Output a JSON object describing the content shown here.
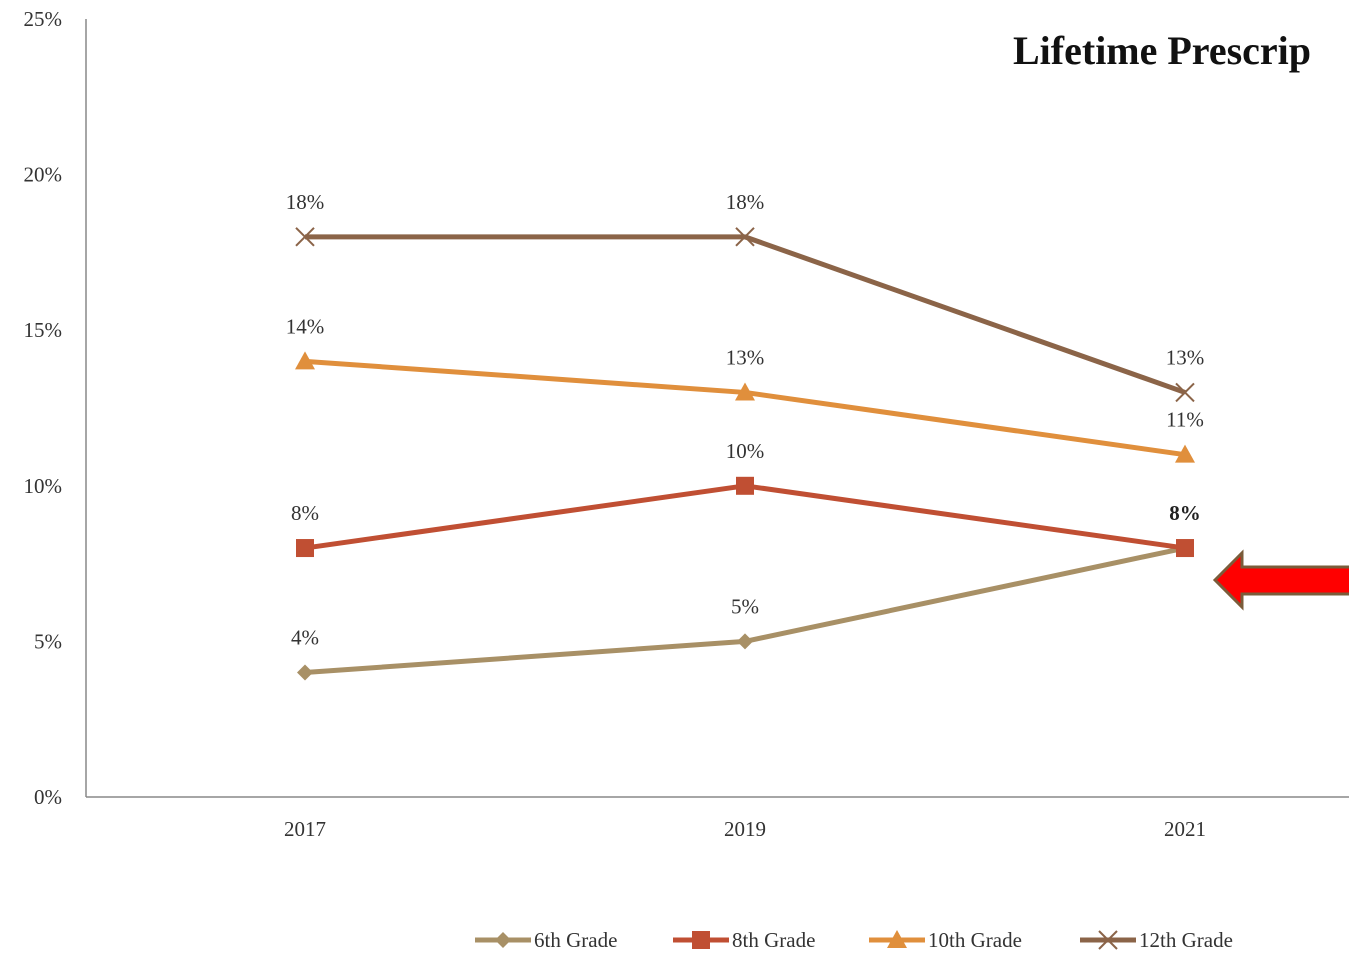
{
  "chart_data": {
    "type": "line",
    "title": "Lifetime Prescrip",
    "categories": [
      "2017",
      "2019",
      "2021"
    ],
    "ylim": [
      0,
      25
    ],
    "y_ticks": [
      0,
      5,
      10,
      15,
      20,
      25
    ],
    "y_tick_format": "%",
    "grid": false,
    "legend_position": "bottom",
    "series": [
      {
        "name": "6th Grade",
        "values": [
          4,
          5,
          8
        ],
        "labels": [
          "4%",
          "5%",
          ""
        ],
        "color": "#a89066",
        "marker": "diamond"
      },
      {
        "name": "8th Grade",
        "values": [
          8,
          10,
          8
        ],
        "labels": [
          "8%",
          "10%",
          "8%"
        ],
        "color": "#c04f33",
        "marker": "square"
      },
      {
        "name": "10th Grade",
        "values": [
          14,
          13,
          11
        ],
        "labels": [
          "14%",
          "13%",
          "11%"
        ],
        "color": "#e08f3c",
        "marker": "triangle"
      },
      {
        "name": "12th Grade",
        "values": [
          18,
          18,
          13
        ],
        "labels": [
          "18%",
          "18%",
          "13%"
        ],
        "color": "#8b6448",
        "marker": "x"
      }
    ],
    "annotation": {
      "type": "arrow",
      "direction": "left",
      "color": "#ff0000",
      "points_to": "2021 8%"
    }
  }
}
